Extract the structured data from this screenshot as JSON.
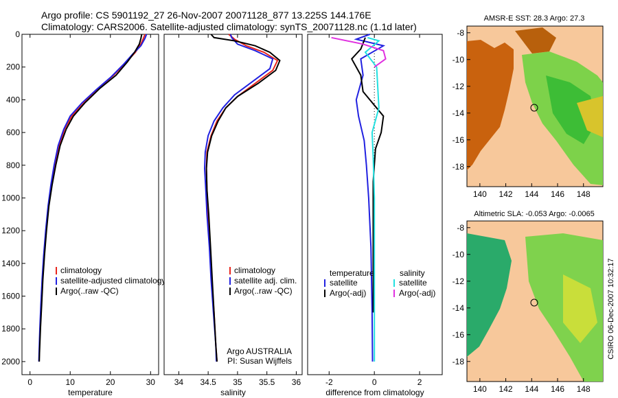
{
  "header": {
    "line1": "Argo profile: CS 5901192_27 26-Nov-2007 20071128_877 13.225S 144.176E",
    "line2": "Climatology: CARS2006. Satellite-adjusted climatology: synTS_20071128.nc (1.1d later)"
  },
  "colors": {
    "climatology": "#e8241b",
    "satellite": "#2020e0",
    "argo": "#000000",
    "sat_diff": "#22e0e0",
    "argo_adj": "#e030e0"
  },
  "chart_data": [
    {
      "type": "line",
      "xlabel": "temperature",
      "ylabel": "",
      "xlim": [
        -2,
        32
      ],
      "ylim": [
        2080,
        0
      ],
      "xticks": [
        0,
        10,
        20,
        30
      ],
      "yticks": [
        0,
        200,
        400,
        600,
        800,
        1000,
        1200,
        1400,
        1600,
        1800,
        2000
      ],
      "series": [
        {
          "name": "climatology",
          "color": "#e8241b",
          "points": [
            [
              28.6,
              0
            ],
            [
              28.2,
              25
            ],
            [
              27.6,
              60
            ],
            [
              26.2,
              110
            ],
            [
              24,
              170
            ],
            [
              20.8,
              250
            ],
            [
              17,
              330
            ],
            [
              13.4,
              420
            ],
            [
              10.4,
              500
            ],
            [
              8.6,
              580
            ],
            [
              7.3,
              680
            ],
            [
              6.2,
              800
            ],
            [
              5.3,
              920
            ],
            [
              4.6,
              1050
            ],
            [
              4.0,
              1200
            ],
            [
              3.5,
              1350
            ],
            [
              3.1,
              1500
            ],
            [
              2.8,
              1650
            ],
            [
              2.5,
              1800
            ],
            [
              2.3,
              1950
            ],
            [
              2.25,
              2000
            ]
          ]
        },
        {
          "name": "satellite-adjusted climatology",
          "color": "#2020e0",
          "points": [
            [
              29.0,
              0
            ],
            [
              28.6,
              25
            ],
            [
              27.6,
              70
            ],
            [
              25.6,
              120
            ],
            [
              23.4,
              180
            ],
            [
              20.2,
              260
            ],
            [
              16.4,
              340
            ],
            [
              12.9,
              420
            ],
            [
              10.0,
              500
            ],
            [
              8.4,
              580
            ],
            [
              7.0,
              680
            ],
            [
              6.0,
              800
            ],
            [
              5.2,
              920
            ],
            [
              4.5,
              1050
            ],
            [
              3.9,
              1200
            ],
            [
              3.4,
              1350
            ],
            [
              3.0,
              1500
            ],
            [
              2.7,
              1650
            ],
            [
              2.45,
              1800
            ],
            [
              2.25,
              1950
            ],
            [
              2.2,
              2000
            ]
          ]
        },
        {
          "name": "Argo(..raw -QC)",
          "color": "#000000",
          "points": [
            [
              27.8,
              0
            ],
            [
              27.6,
              25
            ],
            [
              27.2,
              60
            ],
            [
              26.0,
              110
            ],
            [
              24.2,
              170
            ],
            [
              21.4,
              250
            ],
            [
              17.4,
              330
            ],
            [
              13.6,
              420
            ],
            [
              10.8,
              500
            ],
            [
              9.0,
              580
            ],
            [
              7.5,
              680
            ],
            [
              6.4,
              800
            ],
            [
              5.5,
              920
            ],
            [
              4.7,
              1050
            ],
            [
              4.1,
              1200
            ],
            [
              3.6,
              1350
            ],
            [
              3.2,
              1500
            ],
            [
              2.9,
              1650
            ],
            [
              2.6,
              1800
            ],
            [
              2.35,
              1950
            ],
            [
              2.3,
              2000
            ]
          ]
        }
      ],
      "legend": [
        "climatology",
        "satellite-adjusted climatology",
        "Argo(..raw -QC)"
      ]
    },
    {
      "type": "line",
      "xlabel": "salinity",
      "ylabel": "",
      "xlim": [
        33.75,
        36.1
      ],
      "ylim": [
        2080,
        0
      ],
      "xticks": [
        34,
        34.5,
        35,
        35.5,
        36
      ],
      "yticks": [],
      "series": [
        {
          "name": "climatology",
          "color": "#e8241b",
          "points": [
            [
              34.85,
              0
            ],
            [
              34.95,
              30
            ],
            [
              35.15,
              70
            ],
            [
              35.45,
              110
            ],
            [
              35.68,
              160
            ],
            [
              35.6,
              220
            ],
            [
              35.3,
              300
            ],
            [
              35.0,
              380
            ],
            [
              34.8,
              450
            ],
            [
              34.65,
              530
            ],
            [
              34.55,
              620
            ],
            [
              34.48,
              720
            ],
            [
              34.47,
              820
            ],
            [
              34.48,
              950
            ],
            [
              34.5,
              1100
            ],
            [
              34.53,
              1300
            ],
            [
              34.56,
              1500
            ],
            [
              34.6,
              1700
            ],
            [
              34.63,
              1900
            ],
            [
              34.65,
              2000
            ]
          ]
        },
        {
          "name": "satellite adj. clim.",
          "color": "#2020e0",
          "points": [
            [
              34.88,
              0
            ],
            [
              34.9,
              20
            ],
            [
              35.0,
              60
            ],
            [
              35.3,
              100
            ],
            [
              35.6,
              150
            ],
            [
              35.55,
              210
            ],
            [
              35.25,
              290
            ],
            [
              34.95,
              370
            ],
            [
              34.75,
              450
            ],
            [
              34.6,
              530
            ],
            [
              34.5,
              620
            ],
            [
              34.45,
              720
            ],
            [
              34.44,
              820
            ],
            [
              34.46,
              950
            ],
            [
              34.48,
              1100
            ],
            [
              34.52,
              1300
            ],
            [
              34.55,
              1500
            ],
            [
              34.59,
              1700
            ],
            [
              34.63,
              1900
            ],
            [
              34.64,
              2000
            ]
          ]
        },
        {
          "name": "Argo(..raw -QC)",
          "color": "#000000",
          "points": [
            [
              34.55,
              0
            ],
            [
              34.6,
              20
            ],
            [
              34.95,
              40
            ],
            [
              35.3,
              70
            ],
            [
              35.55,
              110
            ],
            [
              35.72,
              160
            ],
            [
              35.65,
              220
            ],
            [
              35.35,
              300
            ],
            [
              35.0,
              380
            ],
            [
              34.8,
              450
            ],
            [
              34.67,
              530
            ],
            [
              34.56,
              620
            ],
            [
              34.49,
              720
            ],
            [
              34.47,
              820
            ],
            [
              34.48,
              950
            ],
            [
              34.51,
              1100
            ],
            [
              34.54,
              1300
            ],
            [
              34.57,
              1500
            ],
            [
              34.6,
              1700
            ],
            [
              34.63,
              1900
            ],
            [
              34.65,
              2000
            ]
          ]
        }
      ],
      "legend": [
        "climatology",
        "satellite adj. clim.",
        "Argo(..raw -QC)"
      ],
      "annotation": [
        "Argo AUSTRALIA",
        "PI: Susan Wijffels"
      ]
    },
    {
      "type": "line",
      "xlabel": "difference from climatology",
      "ylabel": "",
      "xlim": [
        -2.95,
        3.0
      ],
      "ylim": [
        2080,
        0
      ],
      "xticks": [
        -2,
        0,
        2
      ],
      "yticks": [],
      "series": [
        {
          "name": "temperature satellite",
          "color": "#2020e0",
          "points": [
            [
              -0.2,
              0
            ],
            [
              -0.8,
              30
            ],
            [
              0.4,
              70
            ],
            [
              -0.6,
              150
            ],
            [
              -0.5,
              250
            ],
            [
              -0.8,
              400
            ],
            [
              -0.7,
              500
            ],
            [
              -0.45,
              650
            ],
            [
              -0.35,
              800
            ],
            [
              -0.25,
              1000
            ],
            [
              -0.15,
              1300
            ],
            [
              -0.1,
              1700
            ],
            [
              -0.08,
              2000
            ]
          ]
        },
        {
          "name": "temperature Argo(-adj)",
          "color": "#000000",
          "points": [
            [
              -0.4,
              20
            ],
            [
              -0.6,
              90
            ],
            [
              -1.0,
              150
            ],
            [
              -0.6,
              250
            ],
            [
              -0.5,
              350
            ],
            [
              0.1,
              450
            ],
            [
              0.4,
              500
            ],
            [
              0.3,
              600
            ],
            [
              0.05,
              700
            ],
            [
              -0.05,
              900
            ],
            [
              -0.05,
              1300
            ],
            [
              -0.05,
              1600
            ],
            [
              -0.05,
              1700
            ]
          ]
        },
        {
          "name": "salinity satellite",
          "color": "#22e0e0",
          "points": [
            [
              -0.3,
              20
            ],
            [
              0.2,
              40
            ],
            [
              -0.4,
              110
            ],
            [
              0.1,
              200
            ],
            [
              0.2,
              450
            ],
            [
              -0.1,
              600
            ],
            [
              -0.05,
              750
            ],
            [
              0,
              1000
            ],
            [
              0,
              1500
            ],
            [
              0,
              1900
            ],
            [
              0,
              2000
            ]
          ]
        },
        {
          "name": "salinity Argo(-adj)",
          "color": "#e030e0",
          "points": [
            [
              -1.9,
              20
            ],
            [
              -0.5,
              60
            ],
            [
              0.4,
              100
            ],
            [
              0.5,
              150
            ],
            [
              0.0,
              200
            ]
          ]
        }
      ],
      "legend_headers": [
        "temperature",
        "salinity"
      ],
      "legend": [
        "satellite",
        "Argo(-adj)",
        "satellite",
        "Argo(-adj)"
      ]
    }
  ],
  "maps": {
    "top": {
      "title": "AMSR-E SST: 28.3 Argo: 27.3"
    },
    "bottom": {
      "title": "Altimetric SLA: -0.053 Argo: -0.0065"
    },
    "xticks": [
      140,
      142,
      144,
      146,
      148
    ],
    "yticks": [
      -8,
      -10,
      -12,
      -14,
      -16,
      -18
    ]
  },
  "credit": "CSIRO 06-Dec-2007 10:32:17"
}
